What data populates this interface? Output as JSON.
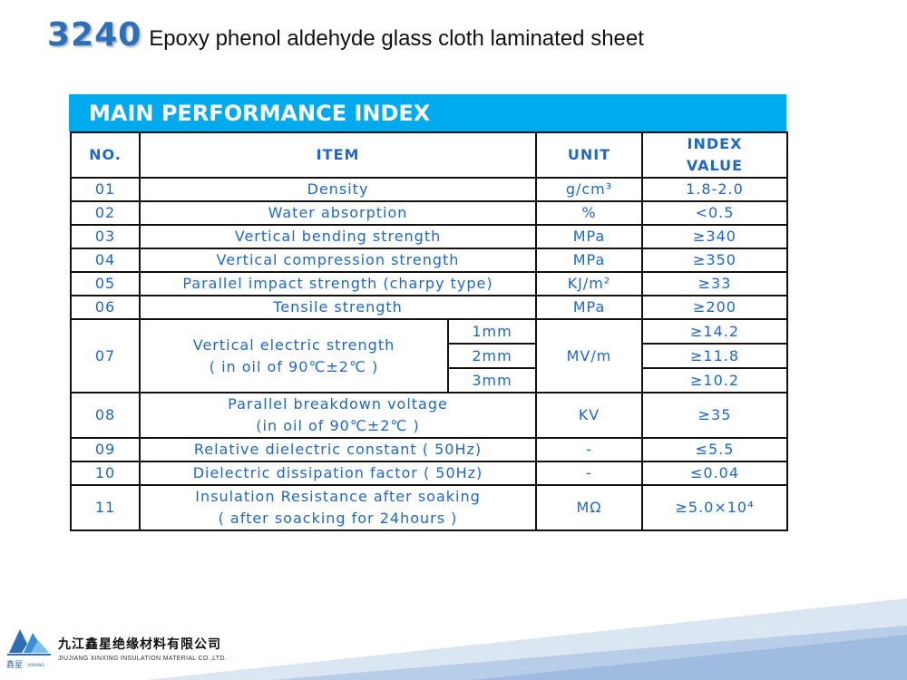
{
  "header": {
    "code": "3240",
    "title": "Epoxy phenol aldehyde glass cloth laminated sheet"
  },
  "banner": "MAIN PERFORMANCE INDEX",
  "table": {
    "headers": {
      "no": "NO.",
      "item": "ITEM",
      "unit": "UNIT",
      "index_line1": "INDEX",
      "index_line2": "VALUE"
    },
    "rows": [
      {
        "no": "01",
        "item": "Density",
        "unit": "g/cm³",
        "value": "1.8-2.0"
      },
      {
        "no": "02",
        "item": "Water absorption",
        "unit": "%",
        "value": "<0.5"
      },
      {
        "no": "03",
        "item": "Vertical bending strength",
        "unit": "MPa",
        "value": "≥340"
      },
      {
        "no": "04",
        "item": "Vertical compression strength",
        "unit": "MPa",
        "value": "≥350"
      },
      {
        "no": "05",
        "item": "Parallel impact strength (charpy type)",
        "unit": "KJ/m²",
        "value": "≥33"
      },
      {
        "no": "06",
        "item": "Tensile strength",
        "unit": "MPa",
        "value": "≥200"
      }
    ],
    "row07": {
      "no": "07",
      "item_line1": "Vertical electric strength",
      "item_line2": "( in oil of 90℃±2℃ )",
      "unit": "MV/m",
      "subs": [
        {
          "thickness": "1mm",
          "value": "≥14.2"
        },
        {
          "thickness": "2mm",
          "value": "≥11.8"
        },
        {
          "thickness": "3mm",
          "value": "≥10.2"
        }
      ]
    },
    "row08": {
      "no": "08",
      "item_line1": "Parallel breakdown voltage",
      "item_line2": "(in oil of 90℃±2℃ )",
      "unit": "KV",
      "value": "≥35"
    },
    "rows2": [
      {
        "no": "09",
        "item": "Relative dielectric constant ( 50Hz)",
        "unit": "-",
        "value": "≤5.5"
      },
      {
        "no": "10",
        "item": "Dielectric dissipation factor ( 50Hz)",
        "unit": "-",
        "value": "≤0.04"
      }
    ],
    "row11": {
      "no": "11",
      "item_line1": "Insulation Resistance after soaking",
      "item_line2": "( after soacking for 24hours )",
      "unit": "MΩ",
      "value": "≥5.0×10⁴"
    }
  },
  "footer": {
    "company_cn": "九江鑫星绝缘材料有限公司",
    "company_en": "JIUJIANG XINXING INSULATION MATERIAL CO.,LTD.",
    "logo_cn": "鑫星",
    "logo_en": "XINXING"
  },
  "colors": {
    "accent": "#00aaef",
    "table_text": "#2068c8",
    "code": "#2e6fb8",
    "wave": "#a9c4e6"
  }
}
